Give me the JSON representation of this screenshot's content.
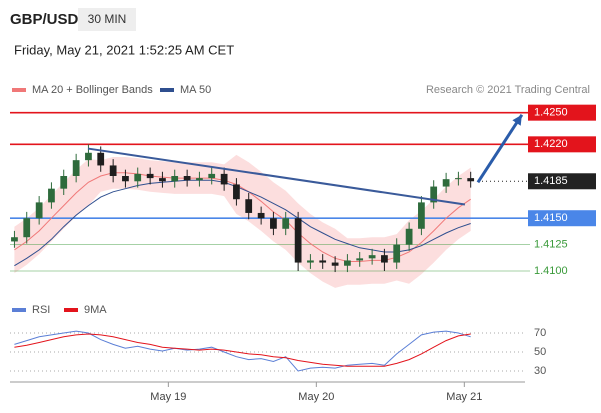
{
  "header": {
    "symbol": "GBP/USD",
    "interval": "30 MIN",
    "datetime": "Friday, May 21, 2021 1:52:25 AM CET"
  },
  "chart_data": [
    {
      "type": "candlestick",
      "credit": "Research © 2021 Trading Central",
      "x": [
        17.96,
        18.043,
        18.127,
        18.21,
        18.293,
        18.377,
        18.46,
        18.543,
        18.627,
        18.71,
        18.793,
        18.877,
        18.96,
        19.043,
        19.127,
        19.21,
        19.293,
        19.377,
        19.46,
        19.543,
        19.627,
        19.71,
        19.793,
        19.877,
        19.96,
        20.043,
        20.127,
        20.21,
        20.293,
        20.377,
        20.46,
        20.543,
        20.627,
        20.71,
        20.793,
        20.877,
        20.96,
        21.043
      ],
      "open": [
        1.4128,
        1.4132,
        1.415,
        1.4165,
        1.4178,
        1.419,
        1.4205,
        1.4212,
        1.42,
        1.419,
        1.4185,
        1.4192,
        1.4188,
        1.4185,
        1.419,
        1.4186,
        1.4188,
        1.4192,
        1.4182,
        1.4168,
        1.4155,
        1.415,
        1.414,
        1.415,
        1.4108,
        1.411,
        1.4108,
        1.4105,
        1.411,
        1.4112,
        1.4115,
        1.4108,
        1.4125,
        1.414,
        1.4165,
        1.418,
        1.4187,
        1.4188
      ],
      "high": [
        1.4138,
        1.4156,
        1.4171,
        1.4184,
        1.4196,
        1.4211,
        1.422,
        1.4218,
        1.4206,
        1.4196,
        1.4198,
        1.4198,
        1.4194,
        1.4196,
        1.4196,
        1.4194,
        1.4198,
        1.4198,
        1.4188,
        1.4174,
        1.4161,
        1.4156,
        1.4156,
        1.4156,
        1.4116,
        1.4116,
        1.4114,
        1.4116,
        1.4118,
        1.4121,
        1.4121,
        1.4131,
        1.4146,
        1.4171,
        1.4186,
        1.4193,
        1.4194,
        1.4194
      ],
      "low": [
        1.4122,
        1.4126,
        1.4144,
        1.4159,
        1.4172,
        1.4184,
        1.4199,
        1.4194,
        1.4184,
        1.4179,
        1.4179,
        1.4182,
        1.4179,
        1.4179,
        1.418,
        1.418,
        1.4182,
        1.4176,
        1.4162,
        1.4149,
        1.4144,
        1.4134,
        1.4134,
        1.41,
        1.4102,
        1.4102,
        1.4099,
        1.4099,
        1.4104,
        1.4106,
        1.41,
        1.4102,
        1.4119,
        1.4134,
        1.4159,
        1.4174,
        1.4181,
        1.4179
      ],
      "close": [
        1.4132,
        1.415,
        1.4165,
        1.4178,
        1.419,
        1.4205,
        1.4212,
        1.42,
        1.419,
        1.4185,
        1.4192,
        1.4188,
        1.4185,
        1.419,
        1.4186,
        1.4188,
        1.4192,
        1.4182,
        1.4168,
        1.4155,
        1.415,
        1.414,
        1.415,
        1.4108,
        1.411,
        1.4108,
        1.4105,
        1.411,
        1.4112,
        1.4115,
        1.4108,
        1.4125,
        1.414,
        1.4165,
        1.418,
        1.4187,
        1.4188,
        1.4185
      ],
      "up_color": "#2e6b3c",
      "down_color": "#1e1e1e",
      "series": [
        {
          "name": "MA 20 + Bollinger Bands",
          "color": "#f07878",
          "band_color": "#fbd6d6",
          "values": [
            1.412,
            1.4128,
            1.4138,
            1.415,
            1.4162,
            1.4174,
            1.4184,
            1.419,
            1.4193,
            1.4193,
            1.4192,
            1.419,
            1.4189,
            1.4188,
            1.4188,
            1.4188,
            1.4188,
            1.4186,
            1.4182,
            1.4175,
            1.4166,
            1.4156,
            1.4148,
            1.4136,
            1.4126,
            1.4118,
            1.4112,
            1.4109,
            1.4109,
            1.411,
            1.411,
            1.4113,
            1.4118,
            1.4127,
            1.4138,
            1.415,
            1.416,
            1.4168
          ],
          "upper": [
            1.4142,
            1.415,
            1.416,
            1.4172,
            1.4184,
            1.4196,
            1.4206,
            1.4205,
            1.4208,
            1.4208,
            1.4207,
            1.4205,
            1.4204,
            1.4203,
            1.4203,
            1.4203,
            1.4203,
            1.4201,
            1.421,
            1.4203,
            1.4194,
            1.4184,
            1.4176,
            1.4164,
            1.4154,
            1.4146,
            1.414,
            1.4131,
            1.4131,
            1.4132,
            1.4132,
            1.4135,
            1.4148,
            1.4157,
            1.4168,
            1.418,
            1.419,
            1.4198
          ],
          "lower": [
            1.4098,
            1.4106,
            1.4116,
            1.4128,
            1.414,
            1.4152,
            1.4162,
            1.4175,
            1.4178,
            1.4178,
            1.4177,
            1.4175,
            1.4174,
            1.4173,
            1.4173,
            1.4173,
            1.4173,
            1.4171,
            1.4154,
            1.4147,
            1.4138,
            1.4128,
            1.412,
            1.4108,
            1.4098,
            1.409,
            1.4084,
            1.4087,
            1.4087,
            1.4088,
            1.4088,
            1.4091,
            1.4088,
            1.4097,
            1.4108,
            1.412,
            1.413,
            1.4138
          ]
        },
        {
          "name": "MA 50",
          "color": "#2f4f8f",
          "values": [
            1.4105,
            1.4112,
            1.412,
            1.413,
            1.4142,
            1.4153,
            1.4162,
            1.417,
            1.4175,
            1.4178,
            1.4181,
            1.4183,
            1.4184,
            1.4185,
            1.4186,
            1.4186,
            1.4186,
            1.4184,
            1.418,
            1.4175,
            1.417,
            1.4164,
            1.4158,
            1.415,
            1.4142,
            1.4136,
            1.413,
            1.4126,
            1.4122,
            1.412,
            1.4118,
            1.4118,
            1.412,
            1.4124,
            1.413,
            1.4136,
            1.4141,
            1.4145
          ]
        }
      ],
      "levels": [
        {
          "value": 1.425,
          "label": "1.4250",
          "color": "#e3141c",
          "style": "box"
        },
        {
          "value": 1.422,
          "label": "1.4220",
          "color": "#e3141c",
          "style": "box"
        },
        {
          "value": 1.4185,
          "label": "1.4185",
          "color": "#222222",
          "style": "dotted"
        },
        {
          "value": 1.415,
          "label": "1.4150",
          "color": "#4a86e8",
          "style": "box"
        },
        {
          "value": 1.4125,
          "label": "1.4125",
          "color": "#3a9a3a",
          "style": "thin"
        },
        {
          "value": 1.41,
          "label": "1.4100",
          "color": "#3a9a3a",
          "style": "thin"
        }
      ],
      "trendline": {
        "x": [
          18.457,
          21.004
        ],
        "y": [
          1.4216,
          1.4163
        ],
        "color": "#3a5a9a"
      },
      "arrow": {
        "x": [
          21.092,
          21.389
        ],
        "y": [
          1.4184,
          1.4248
        ],
        "color": "#2a5caa"
      },
      "xlim": [
        17.93,
        21.41
      ],
      "ylim": [
        1.4082,
        1.4262
      ]
    },
    {
      "type": "line",
      "x": [
        17.96,
        18.043,
        18.127,
        18.21,
        18.293,
        18.377,
        18.46,
        18.543,
        18.627,
        18.71,
        18.793,
        18.877,
        18.96,
        19.043,
        19.127,
        19.21,
        19.293,
        19.377,
        19.46,
        19.543,
        19.627,
        19.71,
        19.793,
        19.877,
        19.96,
        20.043,
        20.127,
        20.21,
        20.293,
        20.377,
        20.46,
        20.543,
        20.627,
        20.71,
        20.793,
        20.877,
        20.96,
        21.043
      ],
      "series": [
        {
          "name": "RSI",
          "color": "#5b7fd6",
          "values": [
            58,
            62,
            66,
            68,
            70,
            72,
            70,
            63,
            58,
            54,
            56,
            53,
            51,
            54,
            52,
            53,
            55,
            50,
            45,
            42,
            43,
            40,
            45,
            30,
            33,
            34,
            33,
            36,
            37,
            38,
            36,
            48,
            58,
            68,
            71,
            72,
            70,
            66
          ]
        },
        {
          "name": "9MA",
          "color": "#e3141c",
          "values": [
            55,
            57,
            60,
            63,
            66,
            68,
            69,
            68,
            66,
            63,
            60,
            58,
            55,
            54,
            53,
            52,
            53,
            52,
            50,
            48,
            47,
            45,
            44,
            41,
            39,
            37,
            36,
            35,
            35,
            35,
            35,
            38,
            42,
            48,
            55,
            62,
            67,
            69
          ]
        }
      ],
      "xlim": [
        17.93,
        21.41
      ],
      "ylim": [
        22.6,
        83.7
      ],
      "yticks": [
        30,
        50,
        70
      ],
      "xticks": [
        {
          "value": 19,
          "label": "May 19"
        },
        {
          "value": 20,
          "label": "May 20"
        },
        {
          "value": 21,
          "label": "May 21"
        }
      ]
    }
  ]
}
